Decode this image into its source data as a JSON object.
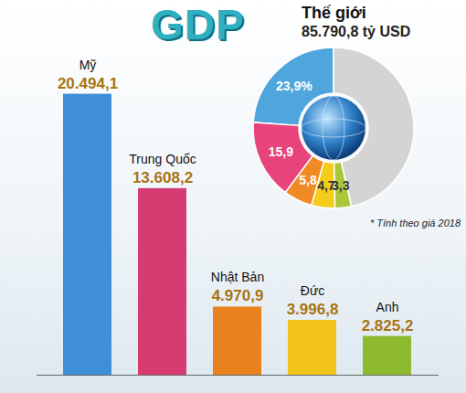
{
  "chart_data": [
    {
      "type": "bar",
      "title": "GDP",
      "categories": [
        "Mỹ",
        "Trung Quốc",
        "Nhật Bản",
        "Đức",
        "Anh"
      ],
      "values": [
        20494.1,
        13608.2,
        4970.9,
        3996.8,
        2825.2
      ],
      "value_labels": [
        "20.494,1",
        "13.608,2",
        "4.970,9",
        "3.996,8",
        "2.825,2"
      ],
      "colors": [
        "#3f8fd8",
        "#d63c72",
        "#e8821e",
        "#f2c318",
        "#8dba2f"
      ],
      "ylim": [
        0,
        21000
      ],
      "data_labels": true,
      "tick_labels": false,
      "grid": false
    },
    {
      "type": "pie",
      "title": "Thế giới",
      "subtitle": "85.790,8 tỷ USD",
      "annotation": "* Tính theo giá 2018",
      "categories": [
        "Mỹ",
        "Trung Quốc",
        "Nhật Bản",
        "Đức",
        "Anh",
        null
      ],
      "values": [
        23.9,
        15.9,
        5.8,
        4.7,
        3.3,
        46.4
      ],
      "value_labels": [
        "23,9%",
        "15,9",
        "5,8",
        "4,7",
        "3,3",
        null
      ],
      "colors": [
        "#4ea6dc",
        "#e8437a",
        "#f08a24",
        "#f5cc1a",
        "#a8c83a",
        "#d4d4d4"
      ],
      "data_labels": true
    }
  ]
}
